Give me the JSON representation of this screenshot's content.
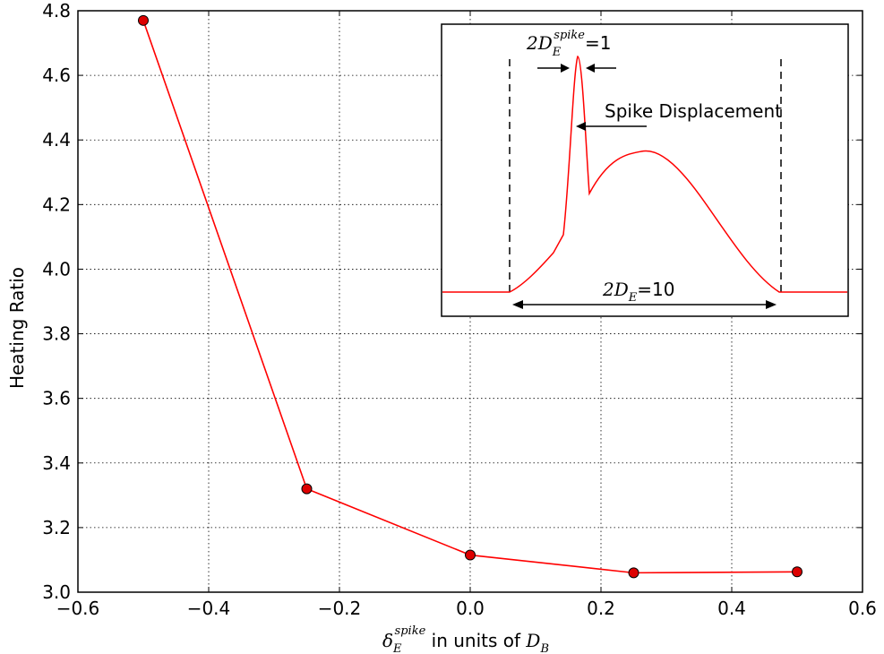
{
  "chart_data": {
    "type": "line",
    "xlabel": {
      "symbol": "δ",
      "sub": "E",
      "sup": "spike",
      "text": " in units of ",
      "unit": "D",
      "unit_sub": "B"
    },
    "ylabel": "Heating Ratio",
    "xlim": [
      -0.6,
      0.6
    ],
    "ylim": [
      3.0,
      4.8
    ],
    "xticks": [
      -0.6,
      -0.4,
      -0.2,
      0.0,
      0.2,
      0.4,
      0.6
    ],
    "xtick_labels": [
      "−0.6",
      "−0.4",
      "−0.2",
      "0.0",
      "0.2",
      "0.4",
      "0.6"
    ],
    "yticks": [
      3.0,
      3.2,
      3.4,
      3.6,
      3.8,
      4.0,
      4.2,
      4.4,
      4.6,
      4.8
    ],
    "ytick_labels": [
      "3.0",
      "3.2",
      "3.4",
      "3.6",
      "3.8",
      "4.0",
      "4.2",
      "4.4",
      "4.6",
      "4.8"
    ],
    "grid": true,
    "series": [
      {
        "color": "#ff0000",
        "marker_color": "#dd0000",
        "x": [
          -0.5,
          -0.25,
          0.0,
          0.25,
          0.5
        ],
        "y": [
          4.77,
          3.32,
          3.115,
          3.06,
          3.063
        ]
      }
    ],
    "inset": {
      "annotations": {
        "spike_width": {
          "prefix": "2",
          "symbol": "D",
          "sub": "E",
          "sup": "spike",
          "value": "=1"
        },
        "spike_displacement": "Spike Displacement",
        "total_width": {
          "prefix": "2",
          "symbol": "D",
          "sub": "E",
          "value": "=10"
        }
      },
      "curve_color": "#ff0000"
    }
  }
}
